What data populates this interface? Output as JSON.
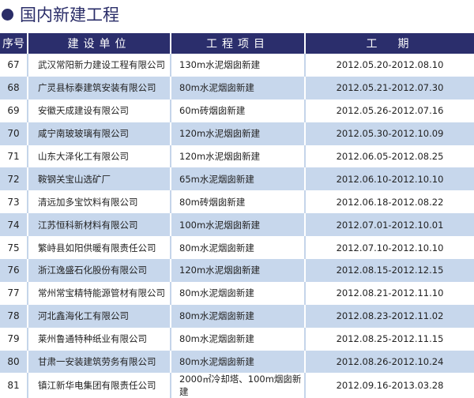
{
  "title": "国内新建工程",
  "colors": {
    "header": "#2b2e6c",
    "alt_row": "#c7d7ec"
  },
  "headers": [
    "序号",
    "建设单位",
    "工程项目",
    "工　期"
  ],
  "rows": [
    [
      "67",
      "武汉常阳新力建设工程有限公司",
      "130m水泥烟囱新建",
      "2012.05.20-2012.08.10"
    ],
    [
      "68",
      "广灵县标泰建筑安装有限公司",
      "80m水泥烟囱新建",
      "2012.05.21-2012.07.30"
    ],
    [
      "69",
      "安徽天成建设有限公司",
      "60m砖烟囱新建",
      "2012.05.26-2012.07.16"
    ],
    [
      "70",
      "咸宁南玻玻璃有限公司",
      "120m水泥烟囱新建",
      "2012.05.30-2012.10.09"
    ],
    [
      "71",
      "山东大泽化工有限公司",
      "120m水泥烟囱新建",
      "2012.06.05-2012.08.25"
    ],
    [
      "72",
      "鞍钢关宝山选矿厂",
      "65m水泥烟囱新建",
      "2012.06.10-2012.10.10"
    ],
    [
      "73",
      "清远加多宝饮料有限公司",
      "80m砖烟囱新建",
      "2012.06.18-2012.08.22"
    ],
    [
      "74",
      "江苏恒科新材料有限公司",
      "100m水泥烟囱新建",
      "2012.07.01-2012.10.01"
    ],
    [
      "75",
      "繁峙县如阳供暖有限责任公司",
      "80m水泥烟囱新建",
      "2012.07.10-2012.10.10"
    ],
    [
      "76",
      "浙江逸盛石化股份有限公司",
      "120m水泥烟囱新建",
      "2012.08.15-2012.12.15"
    ],
    [
      "77",
      "常州常宝精特能源管材有限公司",
      "80m水泥烟囱新建",
      "2012.08.21-2012.11.10"
    ],
    [
      "78",
      "河北鑫海化工有限公司",
      "80m水泥烟囱新建",
      "2012.08.23-2012.11.02"
    ],
    [
      "79",
      "莱州鲁通特种纸业有限公司",
      "80m水泥烟囱新建",
      "2012.08.25-2012.11.15"
    ],
    [
      "80",
      "甘肃一安装建筑劳务有限公司",
      "80m水泥烟囱新建",
      "2012.08.26-2012.10.24"
    ],
    [
      "81",
      "镇江新华电集团有限责任公司",
      "2000㎡冷却塔、100m烟囱新建",
      "2012.09.16-2013.03.28"
    ]
  ]
}
